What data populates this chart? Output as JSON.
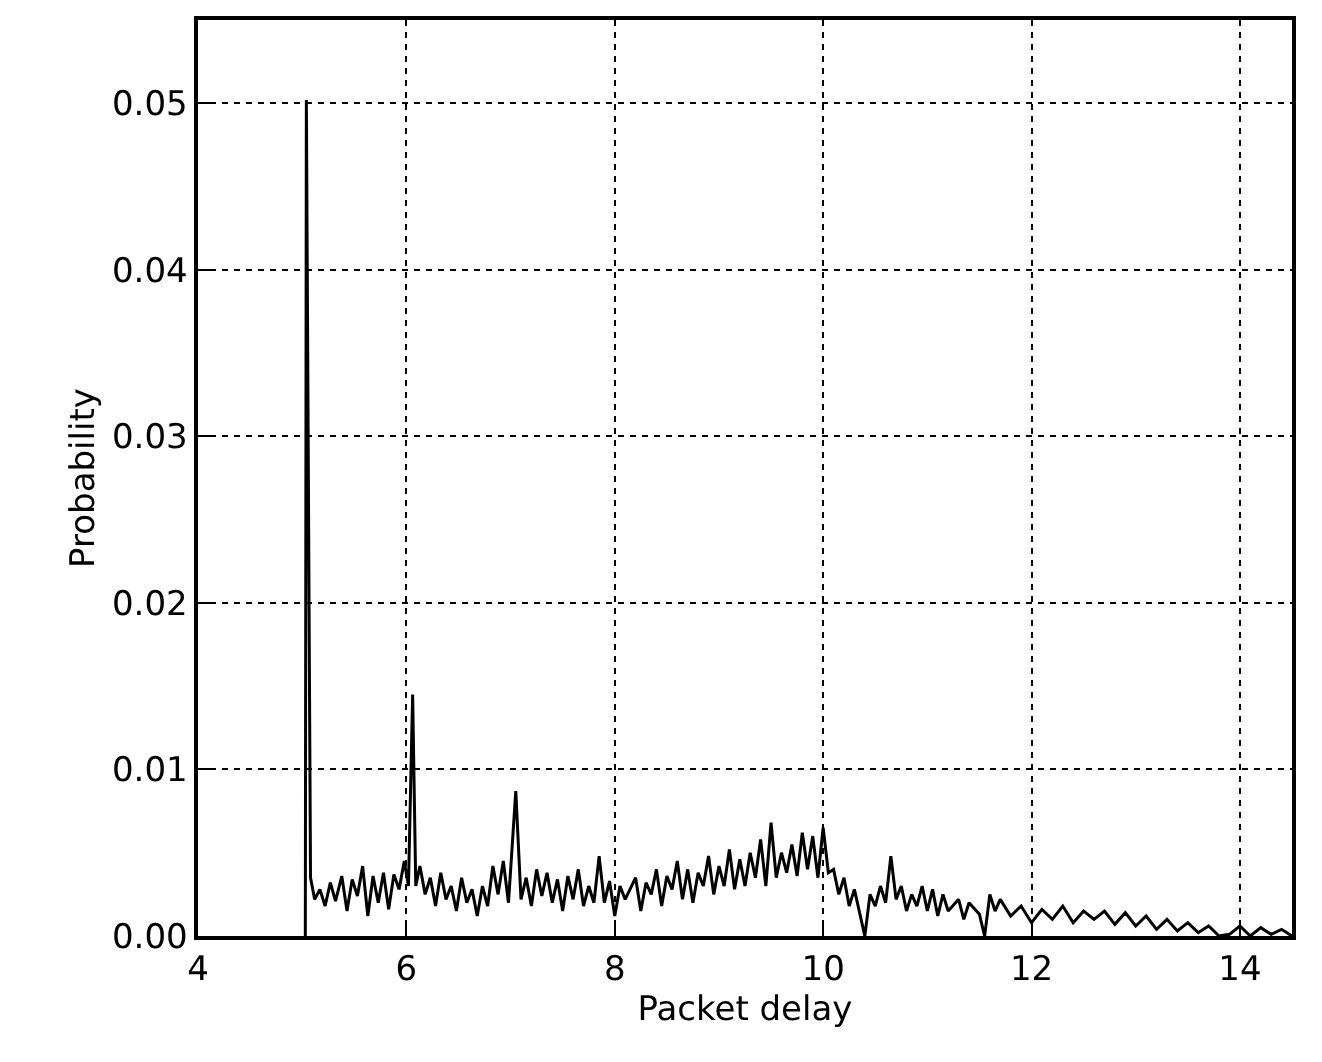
{
  "chart_data": {
    "type": "line",
    "xlabel": "Packet delay",
    "ylabel": "Probability",
    "color": "#000000",
    "grid": true,
    "line_style": "solid",
    "marker": "none",
    "xlim": [
      4,
      14.5
    ],
    "xticks": [
      4,
      6,
      8,
      10,
      12,
      14
    ],
    "ylim": [
      0,
      0.055
    ],
    "yticks": [
      {
        "value": 0,
        "label": "0.00"
      },
      {
        "value": 0.01,
        "label": "0.01"
      },
      {
        "value": 0.02,
        "label": "0.02"
      },
      {
        "value": 0.03,
        "label": "0.03"
      },
      {
        "value": 0.04,
        "label": "0.04"
      },
      {
        "value": 0.05,
        "label": "0.05"
      }
    ],
    "x": [
      5.03,
      5.04,
      5.08,
      5.12,
      5.17,
      5.22,
      5.27,
      5.32,
      5.38,
      5.43,
      5.48,
      5.53,
      5.58,
      5.63,
      5.68,
      5.73,
      5.78,
      5.83,
      5.88,
      5.93,
      5.98,
      6.02,
      6.06,
      6.09,
      6.13,
      6.18,
      6.23,
      6.28,
      6.33,
      6.38,
      6.43,
      6.48,
      6.53,
      6.58,
      6.63,
      6.68,
      6.73,
      6.78,
      6.83,
      6.88,
      6.93,
      6.98,
      7.05,
      7.1,
      7.15,
      7.2,
      7.25,
      7.3,
      7.35,
      7.4,
      7.45,
      7.5,
      7.55,
      7.6,
      7.65,
      7.7,
      7.75,
      7.8,
      7.85,
      7.9,
      7.95,
      8.0,
      8.05,
      8.1,
      8.2,
      8.25,
      8.3,
      8.35,
      8.4,
      8.45,
      8.5,
      8.55,
      8.6,
      8.65,
      8.7,
      8.75,
      8.8,
      8.85,
      8.9,
      8.95,
      9.0,
      9.05,
      9.1,
      9.15,
      9.2,
      9.25,
      9.3,
      9.35,
      9.4,
      9.45,
      9.5,
      9.55,
      9.6,
      9.65,
      9.7,
      9.75,
      9.8,
      9.85,
      9.9,
      9.95,
      10.0,
      10.05,
      10.1,
      10.15,
      10.2,
      10.25,
      10.3,
      10.4,
      10.45,
      10.5,
      10.55,
      10.6,
      10.65,
      10.7,
      10.75,
      10.8,
      10.85,
      10.9,
      10.95,
      11.0,
      11.05,
      11.1,
      11.15,
      11.2,
      11.3,
      11.35,
      11.4,
      11.5,
      11.55,
      11.6,
      11.65,
      11.7,
      11.8,
      11.9,
      12.0,
      12.1,
      12.2,
      12.3,
      12.4,
      12.5,
      12.6,
      12.7,
      12.8,
      12.9,
      13.0,
      13.1,
      13.2,
      13.3,
      13.4,
      13.5,
      13.6,
      13.7,
      13.8,
      13.9,
      14.0,
      14.1,
      14.2,
      14.3,
      14.4,
      14.5
    ],
    "values": [
      0,
      0.0502,
      0.0035,
      0.0022,
      0.0028,
      0.0018,
      0.0032,
      0.0021,
      0.0036,
      0.0015,
      0.0034,
      0.0024,
      0.0042,
      0.0012,
      0.0036,
      0.002,
      0.0038,
      0.0016,
      0.0037,
      0.0028,
      0.0045,
      0.003,
      0.0145,
      0.003,
      0.0042,
      0.0025,
      0.0035,
      0.0018,
      0.0038,
      0.0022,
      0.003,
      0.0015,
      0.0035,
      0.002,
      0.0028,
      0.0012,
      0.003,
      0.0018,
      0.0042,
      0.0025,
      0.0045,
      0.002,
      0.0087,
      0.0022,
      0.0035,
      0.0018,
      0.004,
      0.0024,
      0.0038,
      0.002,
      0.0034,
      0.0015,
      0.0036,
      0.0022,
      0.004,
      0.0018,
      0.003,
      0.002,
      0.0048,
      0.002,
      0.0033,
      0.0012,
      0.003,
      0.0022,
      0.0035,
      0.0015,
      0.0032,
      0.0025,
      0.004,
      0.0018,
      0.0036,
      0.0028,
      0.0045,
      0.0022,
      0.004,
      0.002,
      0.0038,
      0.003,
      0.0048,
      0.0025,
      0.0042,
      0.003,
      0.0052,
      0.0028,
      0.0046,
      0.003,
      0.005,
      0.0035,
      0.0058,
      0.003,
      0.0068,
      0.0035,
      0.005,
      0.0038,
      0.0055,
      0.0036,
      0.0062,
      0.004,
      0.006,
      0.0035,
      0.0065,
      0.0038,
      0.004,
      0.0025,
      0.0035,
      0.0018,
      0.0028,
      0,
      0.0025,
      0.0018,
      0.003,
      0.002,
      0.0048,
      0.0022,
      0.003,
      0.0015,
      0.0025,
      0.0018,
      0.003,
      0.0015,
      0.0028,
      0.0012,
      0.0025,
      0.0015,
      0.0022,
      0.001,
      0.002,
      0.0013,
      0,
      0.0025,
      0.0015,
      0.0022,
      0.0012,
      0.0018,
      0.0008,
      0.0016,
      0.001,
      0.0018,
      0.0008,
      0.0015,
      0.001,
      0.0015,
      0.0007,
      0.0014,
      0.0006,
      0.0012,
      0.0004,
      0.001,
      0.0003,
      0.0008,
      0.0002,
      0.0006,
      0,
      0.0001,
      0.0006,
      0,
      0.0005,
      0.0001,
      0.0004,
      0
    ]
  }
}
